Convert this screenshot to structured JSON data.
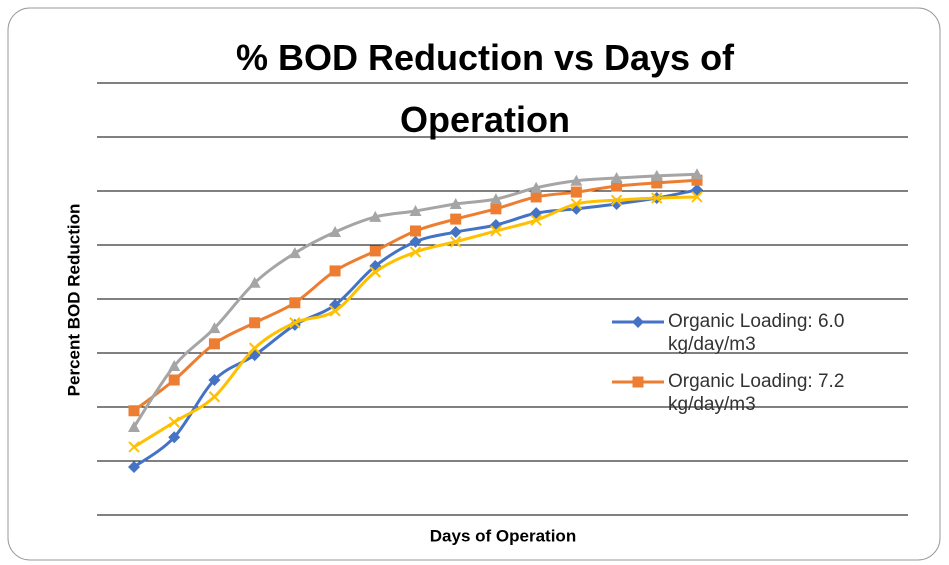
{
  "chart_data": {
    "type": "line",
    "title": "% BOD Reduction vs Days of Operation",
    "x_label": "Days of Operation",
    "y_label": "Percent BOD Reduction",
    "categories": [
      null,
      null,
      null,
      null,
      null,
      null,
      null,
      null,
      null,
      null,
      null,
      null,
      null,
      null,
      null
    ],
    "ylim": [
      0,
      8
    ],
    "yticks": [
      0,
      1,
      2,
      3,
      4,
      5,
      6,
      7,
      8
    ],
    "grid": true,
    "smooth": true,
    "legend": "right",
    "series": [
      {
        "name": "Organic Loading: 6.0 kg/day/m3",
        "color": "#4472c4",
        "marker": "diamond",
        "values": [
          0.89,
          1.44,
          2.5,
          2.96,
          3.52,
          3.89,
          4.61,
          5.06,
          5.24,
          5.37,
          5.59,
          5.67,
          5.76,
          5.87,
          6.02
        ]
      },
      {
        "name": "Organic Loading: 7.2 kg/day/m3",
        "color": "#ed7d31",
        "marker": "square",
        "values": [
          1.93,
          2.5,
          3.17,
          3.56,
          3.93,
          4.52,
          4.89,
          5.26,
          5.48,
          5.67,
          5.89,
          5.98,
          6.09,
          6.15,
          6.2
        ]
      },
      {
        "color": "#a5a5a5",
        "marker": "triangle",
        "values": [
          1.63,
          2.76,
          3.46,
          4.3,
          4.85,
          5.24,
          5.52,
          5.63,
          5.76,
          5.85,
          6.06,
          6.19,
          6.24,
          6.28,
          6.31
        ]
      },
      {
        "color": "#ffc000",
        "marker": "x",
        "values": [
          1.26,
          1.72,
          2.19,
          3.09,
          3.56,
          3.78,
          4.5,
          4.87,
          5.06,
          5.26,
          5.46,
          5.76,
          5.83,
          5.87,
          5.89
        ]
      }
    ]
  }
}
